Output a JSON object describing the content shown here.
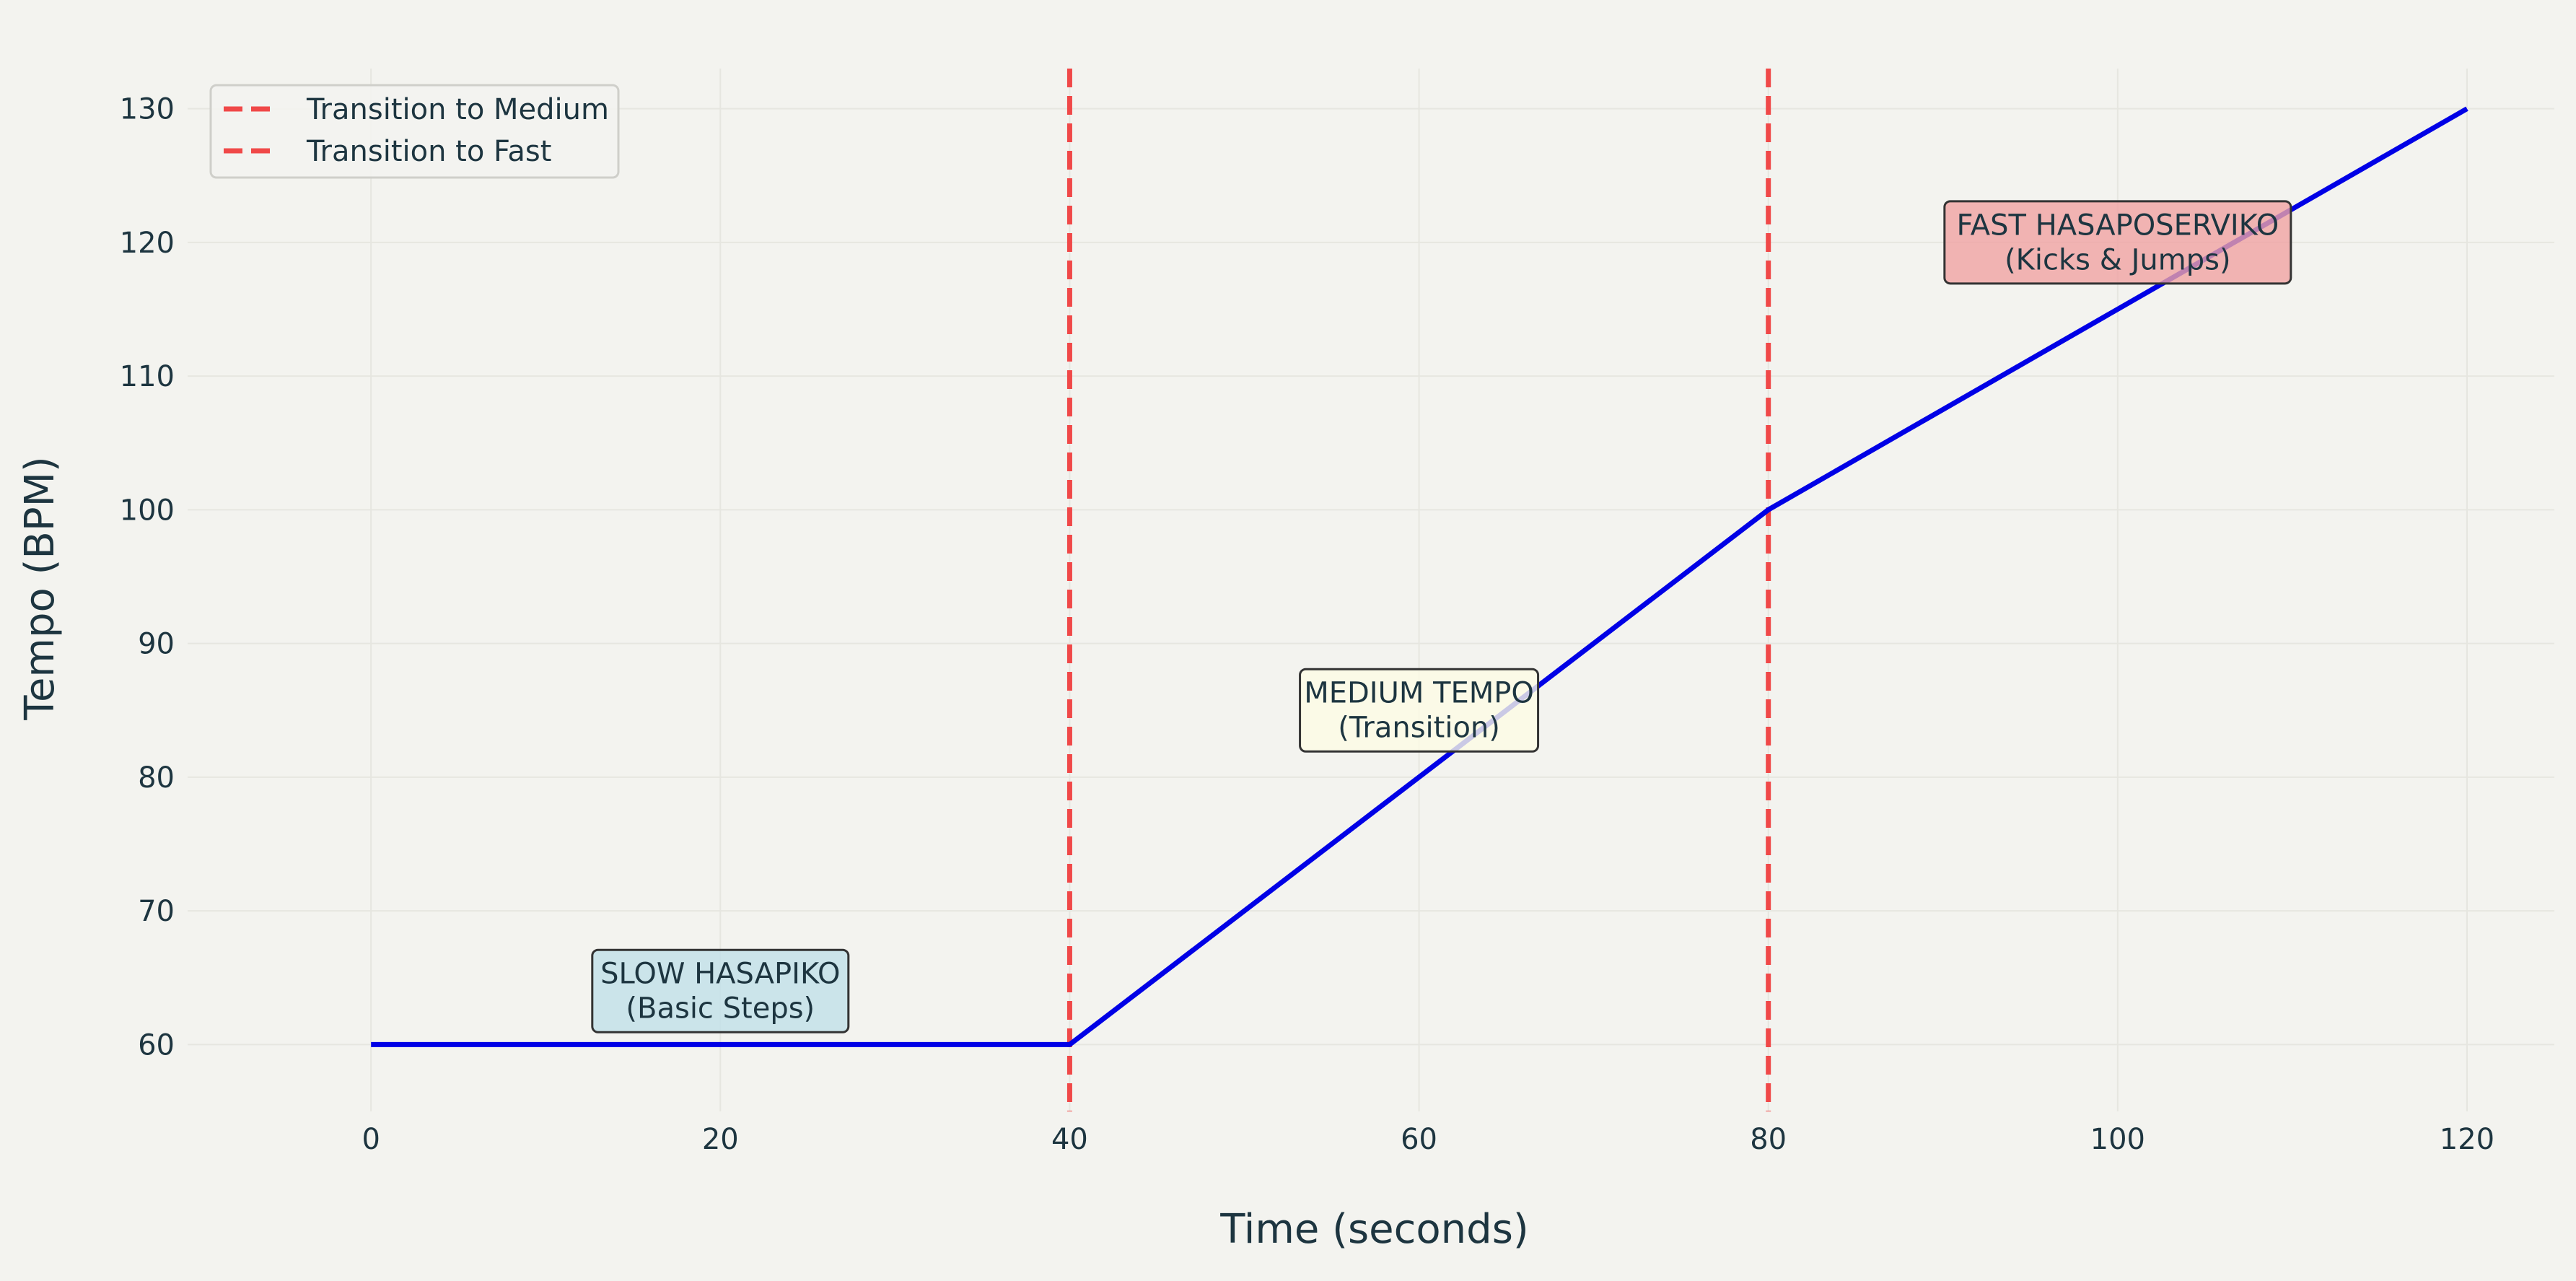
{
  "colors": {
    "background": "#f3f3ef",
    "line": "#0000e6",
    "transition": "#f04848",
    "text": "#1d3540",
    "grid": "#e6e6e0",
    "slow_box": "#c1e0e8",
    "medium_box": "#fdfbe5",
    "fast_box": "#f0a2a2"
  },
  "chart_data": {
    "type": "line",
    "title": "",
    "xlabel": "Time (seconds)",
    "ylabel": "Tempo (BPM)",
    "xlim": [
      -10.5,
      125
    ],
    "ylim": [
      55,
      133
    ],
    "xticks": [
      0,
      20,
      40,
      60,
      80,
      100,
      120
    ],
    "yticks": [
      60,
      70,
      80,
      90,
      100,
      110,
      120,
      130
    ],
    "grid": true,
    "legend_position": "top-left",
    "series": [
      {
        "x": [
          0,
          40,
          80,
          120
        ],
        "y": [
          60,
          60,
          100,
          130
        ]
      }
    ],
    "vlines": [
      {
        "x": 40,
        "label": "Transition to Medium",
        "style": "dashed"
      },
      {
        "x": 80,
        "label": "Transition to Fast",
        "style": "dashed"
      }
    ],
    "annotations": [
      {
        "x": 20,
        "y": 64,
        "lines": [
          "SLOW HASAPIKO",
          "(Basic Steps)"
        ],
        "box": "slow_box"
      },
      {
        "x": 60,
        "y": 85,
        "lines": [
          "MEDIUM TEMPO",
          "(Transition)"
        ],
        "box": "medium_box"
      },
      {
        "x": 100,
        "y": 120,
        "lines": [
          "FAST HASAPOSERVIKO",
          "(Kicks & Jumps)"
        ],
        "box": "fast_box"
      }
    ]
  }
}
